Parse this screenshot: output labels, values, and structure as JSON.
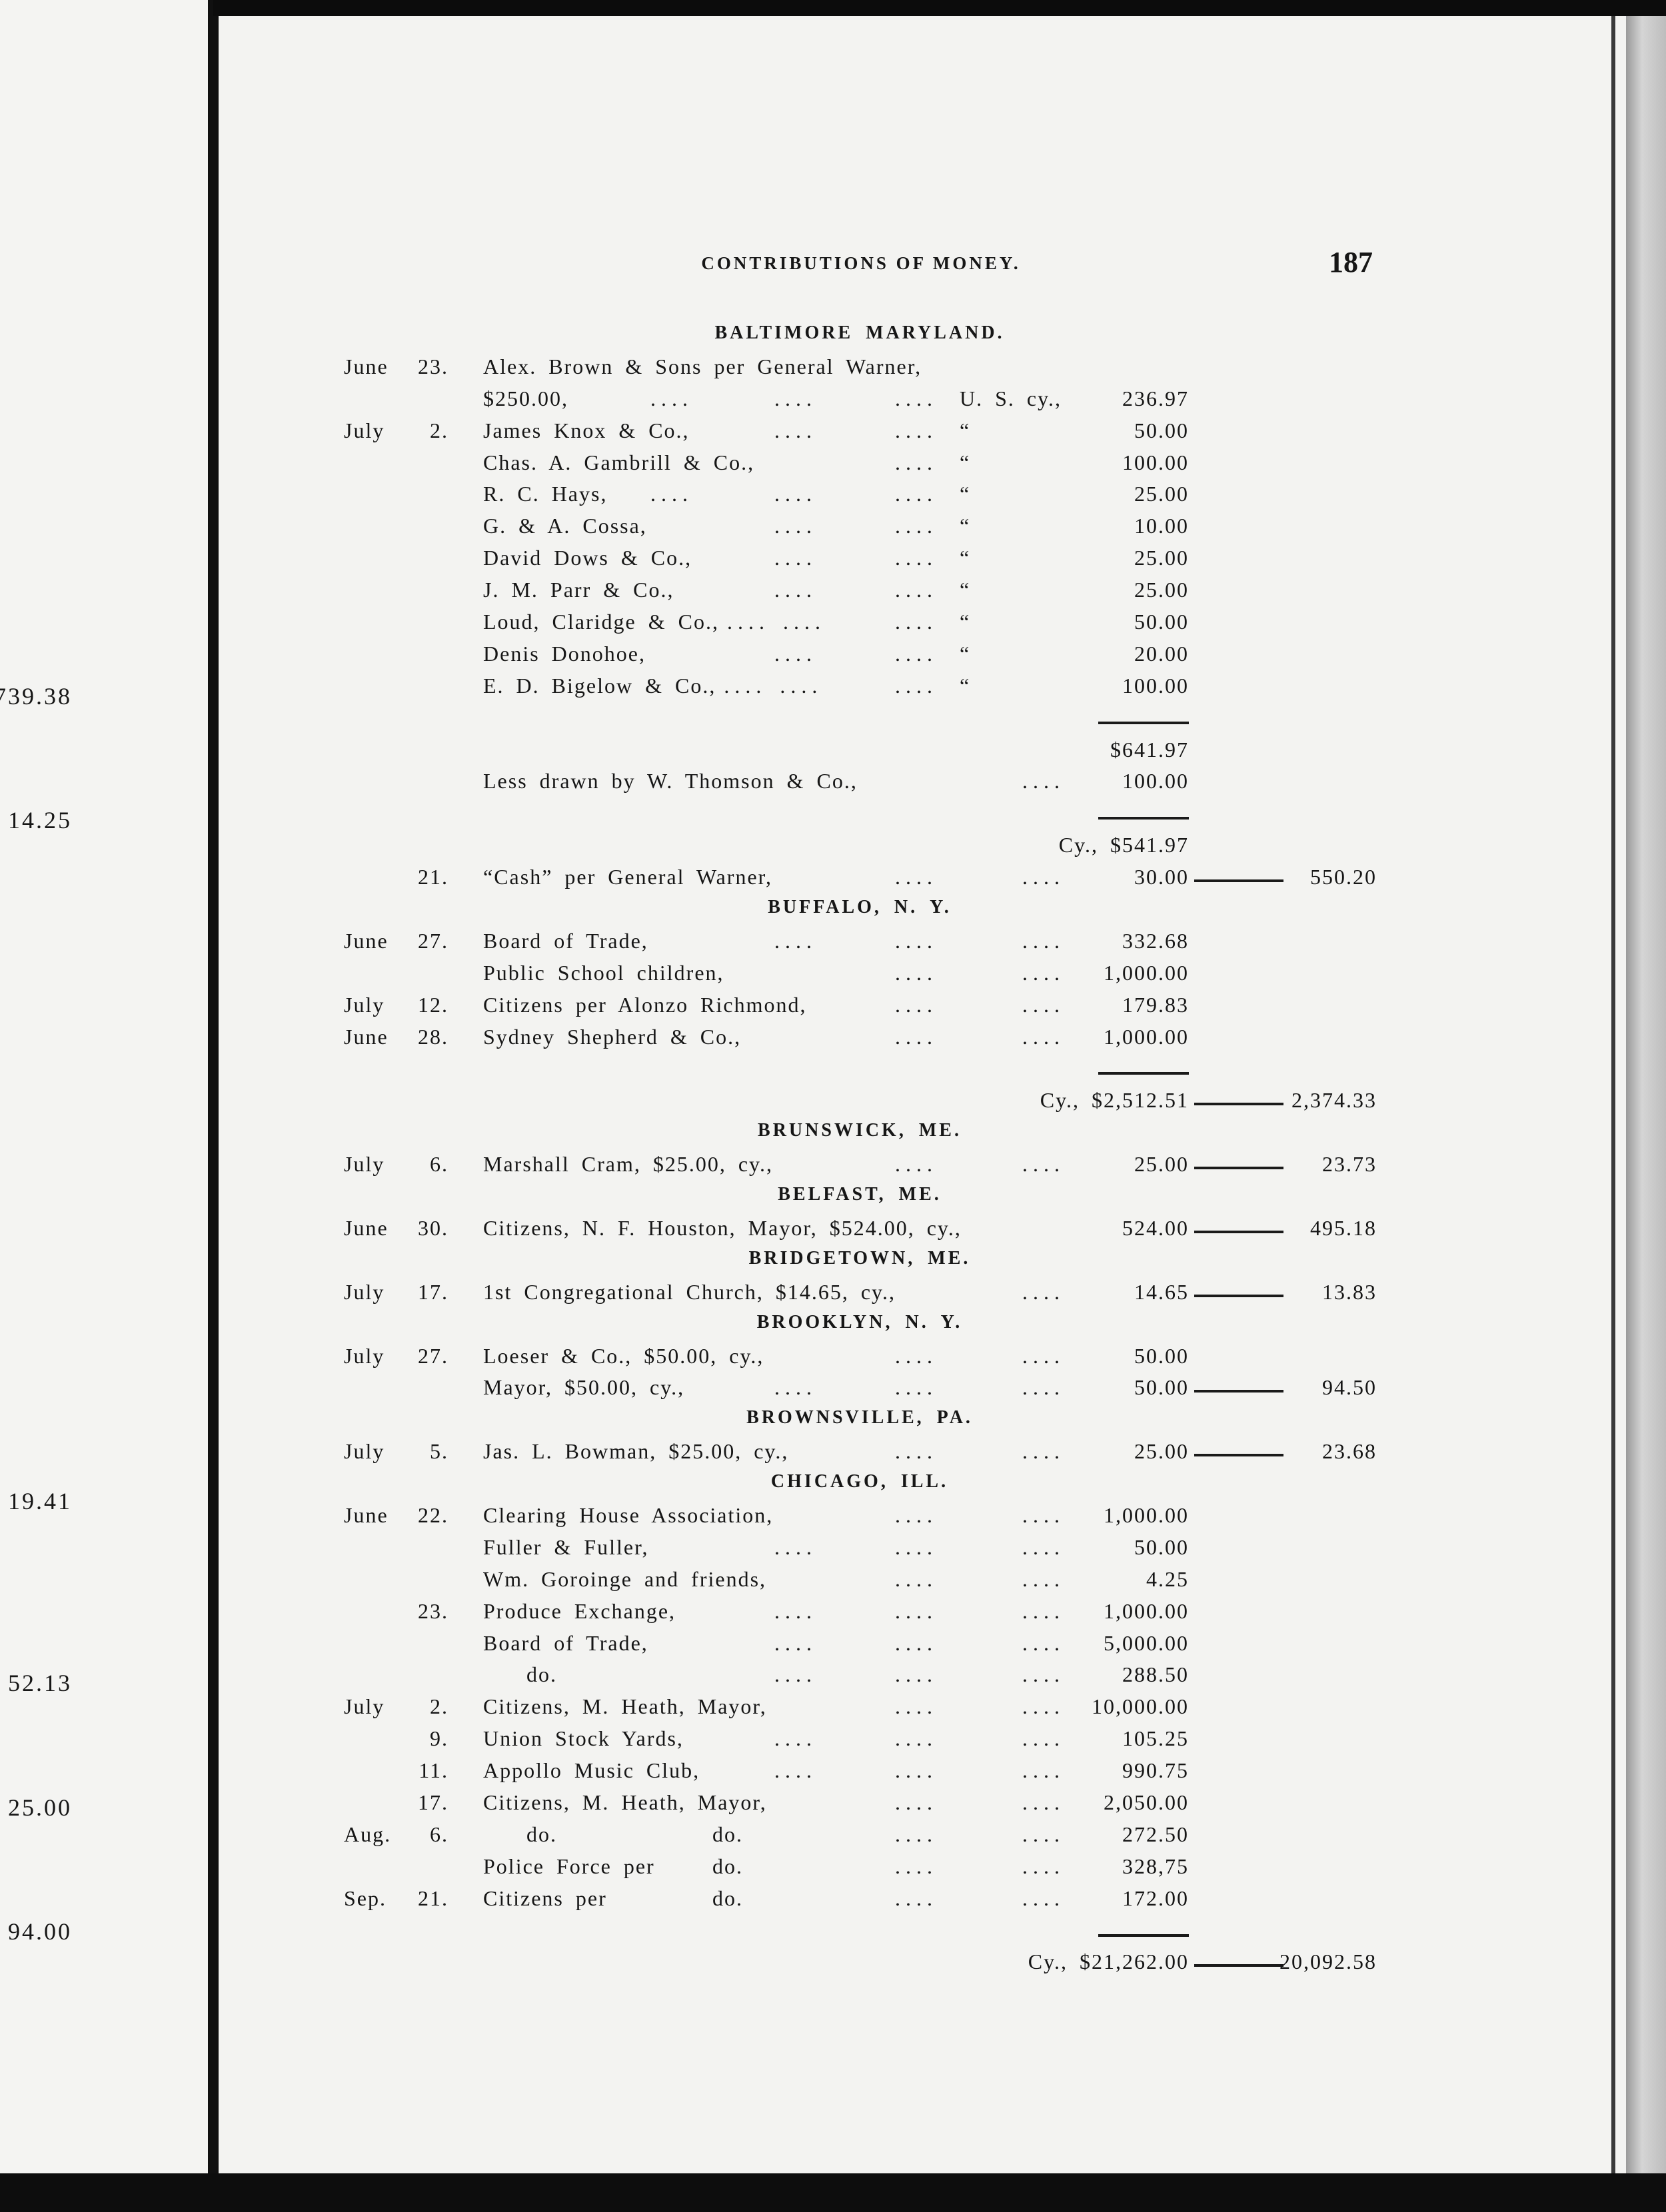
{
  "running_head": "CONTRIBUTIONS OF MONEY.",
  "page_number": "187",
  "previous_page_fragments": [
    "739.38",
    "14.25",
    "19.41",
    "52.13",
    "25.00",
    "94.00"
  ],
  "lines": [
    {
      "type": "section",
      "title": "BALTIMORE MARYLAND."
    },
    {
      "type": "entry",
      "month": "June",
      "day": "23.",
      "desc": "Alex. Brown & Sons per General Warner,"
    },
    {
      "type": "entry",
      "desc": "    $250.00,",
      "leaders": [
        "a",
        "b",
        "c"
      ],
      "unit": "U. S. cy.,",
      "amount": "236.97"
    },
    {
      "type": "entry",
      "month": "July",
      "day": "2.",
      "desc": "James Knox & Co.,",
      "leaders": [
        "b",
        "c"
      ],
      "unit": "“",
      "amount": "50.00"
    },
    {
      "type": "entry",
      "desc": "Chas. A. Gambrill & Co.,",
      "leaders": [
        "c"
      ],
      "unit": "“",
      "amount": "100.00"
    },
    {
      "type": "entry",
      "desc": "R. C. Hays,",
      "leaders": [
        "a",
        "b",
        "c"
      ],
      "unit": "“",
      "amount": "25.00"
    },
    {
      "type": "entry",
      "desc": "G. & A. Cossa,",
      "leaders": [
        "b",
        "c"
      ],
      "unit": "“",
      "amount": "10.00"
    },
    {
      "type": "entry",
      "desc": "David Dows & Co.,",
      "leaders": [
        "b",
        "c"
      ],
      "unit": "“",
      "amount": "25.00"
    },
    {
      "type": "entry",
      "desc": "J. M. Parr & Co.,",
      "leaders": [
        "b",
        "c"
      ],
      "unit": "“",
      "amount": "25.00"
    },
    {
      "type": "entry",
      "desc": "Loud, Claridge & Co.,",
      "leaders": [
        "a",
        "b",
        "c"
      ],
      "unit": "“",
      "amount": "50.00"
    },
    {
      "type": "entry",
      "desc": "Denis Donohoe,",
      "leaders": [
        "b",
        "c"
      ],
      "unit": "“",
      "amount": "20.00"
    },
    {
      "type": "entry",
      "desc": "E. D. Bigelow & Co.,",
      "leaders": [
        "a",
        "b",
        "c"
      ],
      "unit": "“",
      "amount": "100.00"
    },
    {
      "type": "rule"
    },
    {
      "type": "entry",
      "amount": "$641.97"
    },
    {
      "type": "entry",
      "desc": "Less drawn by W. Thomson & Co.,",
      "leaders": [
        "d"
      ],
      "amount": "100.00"
    },
    {
      "type": "rule"
    },
    {
      "type": "entry",
      "amount": "Cy., $541.97"
    },
    {
      "type": "entry",
      "day": "21.",
      "desc": "“Cash” per General Warner,",
      "leaders": [
        "c",
        "d"
      ],
      "amount": "30.00",
      "total": "550.20"
    },
    {
      "type": "section",
      "title": "BUFFALO, N. Y."
    },
    {
      "type": "entry",
      "month": "June",
      "day": "27.",
      "desc": "Board of Trade,",
      "leaders": [
        "b",
        "c",
        "d"
      ],
      "amount": "332.68"
    },
    {
      "type": "entry",
      "desc": "Public School children,",
      "leaders": [
        "c",
        "d"
      ],
      "amount": "1,000.00"
    },
    {
      "type": "entry",
      "month": "July",
      "day": "12.",
      "desc": "Citizens per Alonzo Richmond,",
      "leaders": [
        "c",
        "d"
      ],
      "amount": "179.83"
    },
    {
      "type": "entry",
      "month": "June",
      "day": "28.",
      "desc": "Sydney Shepherd & Co.,",
      "leaders": [
        "c",
        "d"
      ],
      "amount": "1,000.00"
    },
    {
      "type": "rule"
    },
    {
      "type": "entry",
      "amount": "Cy., $2,512.51",
      "total": "2,374.33"
    },
    {
      "type": "section",
      "title": "BRUNSWICK, ME."
    },
    {
      "type": "entry",
      "month": "July",
      "day": "6.",
      "desc": "Marshall Cram, $25.00, cy.,",
      "leaders": [
        "c",
        "d"
      ],
      "amount": "25.00",
      "total": "23.73"
    },
    {
      "type": "section",
      "title": "BELFAST, ME."
    },
    {
      "type": "entry",
      "month": "June",
      "day": "30.",
      "desc": "Citizens, N. F. Houston, Mayor, $524.00, cy.,",
      "amount": "524.00",
      "total": "495.18"
    },
    {
      "type": "section",
      "title": "BRIDGETOWN, ME."
    },
    {
      "type": "entry",
      "month": "July",
      "day": "17.",
      "desc": "1st Congregational Church, $14.65, cy.,",
      "leaders": [
        "d"
      ],
      "amount": "14.65",
      "total": "13.83"
    },
    {
      "type": "section",
      "title": "BROOKLYN, N. Y."
    },
    {
      "type": "entry",
      "month": "July",
      "day": "27.",
      "desc": "Loeser & Co., $50.00, cy.,",
      "leaders": [
        "c",
        "d"
      ],
      "amount": "50.00"
    },
    {
      "type": "entry",
      "desc": "Mayor, $50.00, cy.,",
      "leaders": [
        "b",
        "c",
        "d"
      ],
      "amount": "50.00",
      "total": "94.50"
    },
    {
      "type": "section",
      "title": "BROWNSVILLE, PA."
    },
    {
      "type": "entry",
      "month": "July",
      "day": "5.",
      "desc": "Jas. L. Bowman, $25.00, cy.,",
      "leaders": [
        "c",
        "d"
      ],
      "amount": "25.00",
      "total": "23.68"
    },
    {
      "type": "section",
      "title": "CHICAGO, ILL."
    },
    {
      "type": "entry",
      "month": "June",
      "day": "22.",
      "desc": "Clearing House Association,",
      "leaders": [
        "c",
        "d"
      ],
      "amount": "1,000.00"
    },
    {
      "type": "entry",
      "desc": "Fuller & Fuller,",
      "leaders": [
        "b",
        "c",
        "d"
      ],
      "amount": "50.00"
    },
    {
      "type": "entry",
      "desc": "Wm. Goroinge and friends,",
      "leaders": [
        "c",
        "d"
      ],
      "amount": "4.25"
    },
    {
      "type": "entry",
      "day": "23.",
      "desc": "Produce Exchange,",
      "leaders": [
        "b",
        "c",
        "d"
      ],
      "amount": "1,000.00"
    },
    {
      "type": "entry",
      "desc": "Board of Trade,",
      "leaders": [
        "b",
        "c",
        "d"
      ],
      "amount": "5,000.00"
    },
    {
      "type": "entry",
      "desc": "do.",
      "leaders": [
        "b",
        "c",
        "d"
      ],
      "amount": "288.50"
    },
    {
      "type": "entry",
      "month": "July",
      "day": "2.",
      "desc": "Citizens, M. Heath, Mayor,",
      "leaders": [
        "c",
        "d"
      ],
      "amount": "10,000.00"
    },
    {
      "type": "entry",
      "day": "9.",
      "desc": "Union Stock Yards,",
      "leaders": [
        "b",
        "c",
        "d"
      ],
      "amount": "105.25"
    },
    {
      "type": "entry",
      "day": "11.",
      "desc": "Appollo Music Club,",
      "leaders": [
        "b",
        "c",
        "d"
      ],
      "amount": "990.75"
    },
    {
      "type": "entry",
      "day": "17.",
      "desc": "Citizens, M. Heath, Mayor,",
      "leaders": [
        "c",
        "d"
      ],
      "amount": "2,050.00"
    },
    {
      "type": "entry",
      "month": "Aug.",
      "day": "6.",
      "desc": "do.",
      "ditto": "do.",
      "leaders": [
        "c",
        "d"
      ],
      "amount": "272.50"
    },
    {
      "type": "entry",
      "desc": "Police Force per",
      "ditto": "do.",
      "leaders": [
        "c",
        "d"
      ],
      "amount": "328,75"
    },
    {
      "type": "entry",
      "month": "Sep.",
      "day": "21.",
      "desc": "Citizens per",
      "ditto": "do.",
      "leaders": [
        "c",
        "d"
      ],
      "amount": "172.00"
    },
    {
      "type": "rule"
    },
    {
      "type": "entry",
      "amount": "Cy., $21,262.00",
      "total": "20,092.58"
    }
  ],
  "leader_text": "...."
}
